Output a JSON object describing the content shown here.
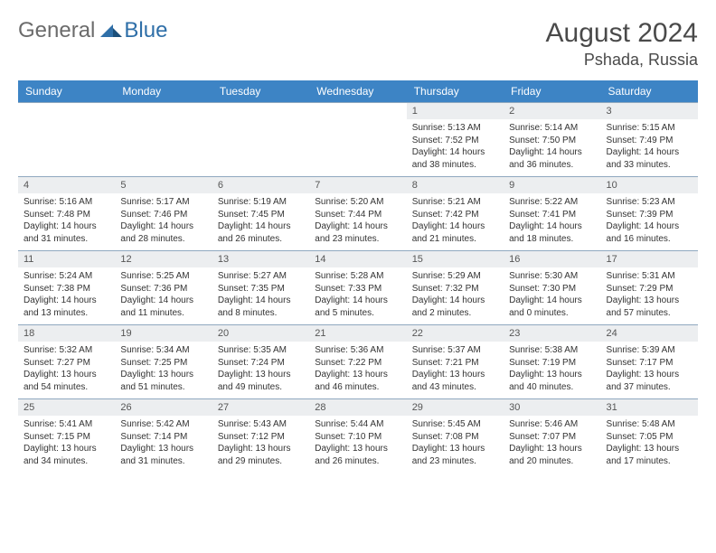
{
  "logo": {
    "general": "General",
    "blue": "Blue"
  },
  "title": "August 2024",
  "location": "Pshada, Russia",
  "colors": {
    "header_bg": "#3d84c5",
    "header_text": "#ffffff",
    "daynum_bg": "#eceef0",
    "border": "#8fa8bf",
    "logo_gray": "#6b6b6b",
    "logo_blue": "#2f6fa8"
  },
  "weekdays": [
    "Sunday",
    "Monday",
    "Tuesday",
    "Wednesday",
    "Thursday",
    "Friday",
    "Saturday"
  ],
  "weeks": [
    [
      null,
      null,
      null,
      null,
      {
        "n": "1",
        "sr": "Sunrise: 5:13 AM",
        "ss": "Sunset: 7:52 PM",
        "dl": "Daylight: 14 hours and 38 minutes."
      },
      {
        "n": "2",
        "sr": "Sunrise: 5:14 AM",
        "ss": "Sunset: 7:50 PM",
        "dl": "Daylight: 14 hours and 36 minutes."
      },
      {
        "n": "3",
        "sr": "Sunrise: 5:15 AM",
        "ss": "Sunset: 7:49 PM",
        "dl": "Daylight: 14 hours and 33 minutes."
      }
    ],
    [
      {
        "n": "4",
        "sr": "Sunrise: 5:16 AM",
        "ss": "Sunset: 7:48 PM",
        "dl": "Daylight: 14 hours and 31 minutes."
      },
      {
        "n": "5",
        "sr": "Sunrise: 5:17 AM",
        "ss": "Sunset: 7:46 PM",
        "dl": "Daylight: 14 hours and 28 minutes."
      },
      {
        "n": "6",
        "sr": "Sunrise: 5:19 AM",
        "ss": "Sunset: 7:45 PM",
        "dl": "Daylight: 14 hours and 26 minutes."
      },
      {
        "n": "7",
        "sr": "Sunrise: 5:20 AM",
        "ss": "Sunset: 7:44 PM",
        "dl": "Daylight: 14 hours and 23 minutes."
      },
      {
        "n": "8",
        "sr": "Sunrise: 5:21 AM",
        "ss": "Sunset: 7:42 PM",
        "dl": "Daylight: 14 hours and 21 minutes."
      },
      {
        "n": "9",
        "sr": "Sunrise: 5:22 AM",
        "ss": "Sunset: 7:41 PM",
        "dl": "Daylight: 14 hours and 18 minutes."
      },
      {
        "n": "10",
        "sr": "Sunrise: 5:23 AM",
        "ss": "Sunset: 7:39 PM",
        "dl": "Daylight: 14 hours and 16 minutes."
      }
    ],
    [
      {
        "n": "11",
        "sr": "Sunrise: 5:24 AM",
        "ss": "Sunset: 7:38 PM",
        "dl": "Daylight: 14 hours and 13 minutes."
      },
      {
        "n": "12",
        "sr": "Sunrise: 5:25 AM",
        "ss": "Sunset: 7:36 PM",
        "dl": "Daylight: 14 hours and 11 minutes."
      },
      {
        "n": "13",
        "sr": "Sunrise: 5:27 AM",
        "ss": "Sunset: 7:35 PM",
        "dl": "Daylight: 14 hours and 8 minutes."
      },
      {
        "n": "14",
        "sr": "Sunrise: 5:28 AM",
        "ss": "Sunset: 7:33 PM",
        "dl": "Daylight: 14 hours and 5 minutes."
      },
      {
        "n": "15",
        "sr": "Sunrise: 5:29 AM",
        "ss": "Sunset: 7:32 PM",
        "dl": "Daylight: 14 hours and 2 minutes."
      },
      {
        "n": "16",
        "sr": "Sunrise: 5:30 AM",
        "ss": "Sunset: 7:30 PM",
        "dl": "Daylight: 14 hours and 0 minutes."
      },
      {
        "n": "17",
        "sr": "Sunrise: 5:31 AM",
        "ss": "Sunset: 7:29 PM",
        "dl": "Daylight: 13 hours and 57 minutes."
      }
    ],
    [
      {
        "n": "18",
        "sr": "Sunrise: 5:32 AM",
        "ss": "Sunset: 7:27 PM",
        "dl": "Daylight: 13 hours and 54 minutes."
      },
      {
        "n": "19",
        "sr": "Sunrise: 5:34 AM",
        "ss": "Sunset: 7:25 PM",
        "dl": "Daylight: 13 hours and 51 minutes."
      },
      {
        "n": "20",
        "sr": "Sunrise: 5:35 AM",
        "ss": "Sunset: 7:24 PM",
        "dl": "Daylight: 13 hours and 49 minutes."
      },
      {
        "n": "21",
        "sr": "Sunrise: 5:36 AM",
        "ss": "Sunset: 7:22 PM",
        "dl": "Daylight: 13 hours and 46 minutes."
      },
      {
        "n": "22",
        "sr": "Sunrise: 5:37 AM",
        "ss": "Sunset: 7:21 PM",
        "dl": "Daylight: 13 hours and 43 minutes."
      },
      {
        "n": "23",
        "sr": "Sunrise: 5:38 AM",
        "ss": "Sunset: 7:19 PM",
        "dl": "Daylight: 13 hours and 40 minutes."
      },
      {
        "n": "24",
        "sr": "Sunrise: 5:39 AM",
        "ss": "Sunset: 7:17 PM",
        "dl": "Daylight: 13 hours and 37 minutes."
      }
    ],
    [
      {
        "n": "25",
        "sr": "Sunrise: 5:41 AM",
        "ss": "Sunset: 7:15 PM",
        "dl": "Daylight: 13 hours and 34 minutes."
      },
      {
        "n": "26",
        "sr": "Sunrise: 5:42 AM",
        "ss": "Sunset: 7:14 PM",
        "dl": "Daylight: 13 hours and 31 minutes."
      },
      {
        "n": "27",
        "sr": "Sunrise: 5:43 AM",
        "ss": "Sunset: 7:12 PM",
        "dl": "Daylight: 13 hours and 29 minutes."
      },
      {
        "n": "28",
        "sr": "Sunrise: 5:44 AM",
        "ss": "Sunset: 7:10 PM",
        "dl": "Daylight: 13 hours and 26 minutes."
      },
      {
        "n": "29",
        "sr": "Sunrise: 5:45 AM",
        "ss": "Sunset: 7:08 PM",
        "dl": "Daylight: 13 hours and 23 minutes."
      },
      {
        "n": "30",
        "sr": "Sunrise: 5:46 AM",
        "ss": "Sunset: 7:07 PM",
        "dl": "Daylight: 13 hours and 20 minutes."
      },
      {
        "n": "31",
        "sr": "Sunrise: 5:48 AM",
        "ss": "Sunset: 7:05 PM",
        "dl": "Daylight: 13 hours and 17 minutes."
      }
    ]
  ]
}
